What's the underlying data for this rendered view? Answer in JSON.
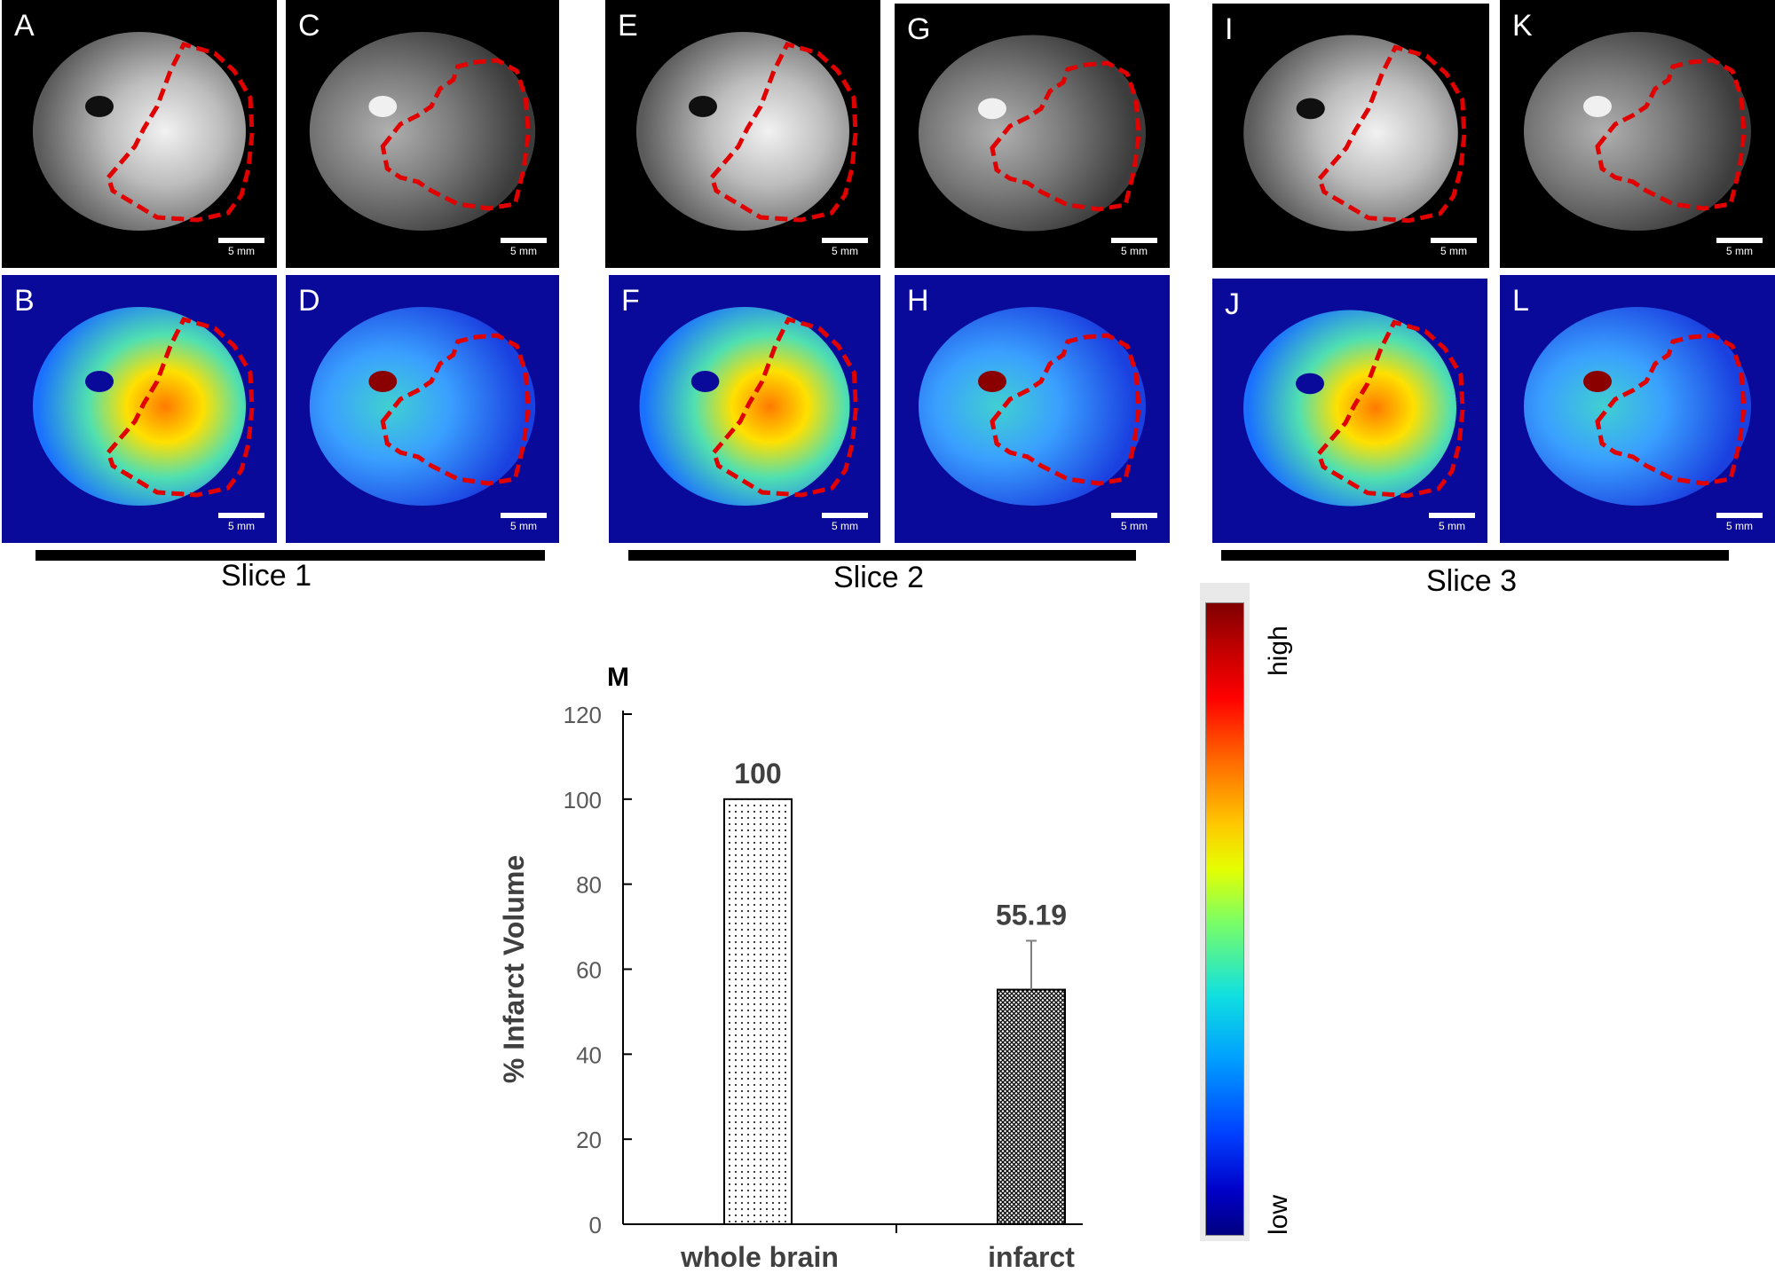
{
  "panels": [
    {
      "letter": "A",
      "kind": "gray",
      "brain": "a"
    },
    {
      "letter": "C",
      "kind": "gray",
      "brain": "b"
    },
    {
      "letter": "E",
      "kind": "gray",
      "brain": "a"
    },
    {
      "letter": "G",
      "kind": "gray",
      "brain": "b"
    },
    {
      "letter": "I",
      "kind": "gray",
      "brain": "a"
    },
    {
      "letter": "K",
      "kind": "gray",
      "brain": "b"
    },
    {
      "letter": "B",
      "kind": "color",
      "brain": "a"
    },
    {
      "letter": "D",
      "kind": "color",
      "brain": "b"
    },
    {
      "letter": "F",
      "kind": "color",
      "brain": "a"
    },
    {
      "letter": "H",
      "kind": "color",
      "brain": "b"
    },
    {
      "letter": "J",
      "kind": "color",
      "brain": "a"
    },
    {
      "letter": "L",
      "kind": "color",
      "brain": "b"
    }
  ],
  "scale_bar_label": "5 mm",
  "slice_labels": [
    "Slice 1",
    "Slice 2",
    "Slice 3"
  ],
  "colorbar": {
    "high_label": "high",
    "low_label": "low"
  },
  "chart_data": {
    "type": "bar",
    "panel_label": "M",
    "categories": [
      "whole brain",
      "infarct"
    ],
    "values": [
      100,
      55.19
    ],
    "value_labels": [
      "100",
      "55.19"
    ],
    "error_bars": [
      0,
      11.5
    ],
    "ylabel": "% Infarct Volume",
    "ylim": [
      0,
      120
    ],
    "yticks": [
      0,
      20,
      40,
      60,
      80,
      100,
      120
    ],
    "bar_patterns": [
      "fine-dots",
      "dense-crosshatch"
    ],
    "grid": false,
    "colors": {
      "bar_fill": "#ffffff",
      "bar_edge": "#000000",
      "axis": "#000000",
      "tick_text": "#595959",
      "label_text": "#404040",
      "dashed_outline": "#e00000"
    }
  }
}
